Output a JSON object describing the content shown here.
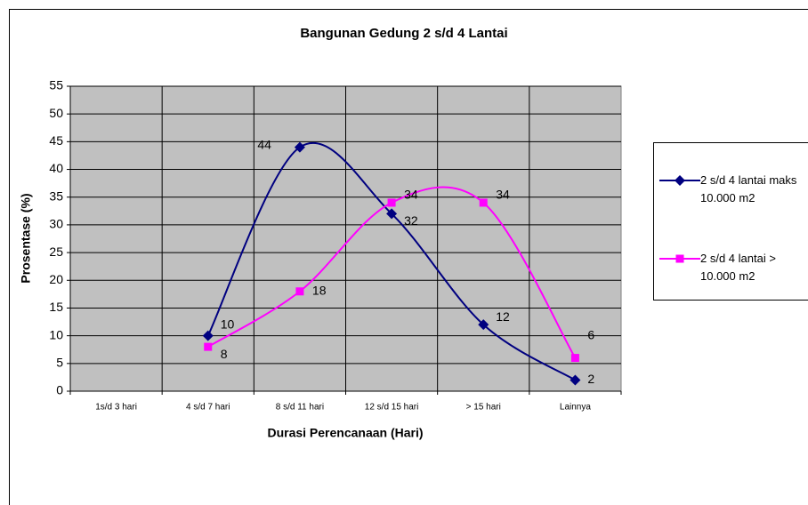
{
  "chart_data": {
    "type": "line",
    "title": "Bangunan Gedung 2 s/d 4  Lantai",
    "x_label": "Durasi Perencanaan (Hari)",
    "y_label": "Prosentase (%)",
    "categories": [
      "1s/d 3 hari",
      "4 s/d 7 hari",
      "8 s/d 11 hari",
      "12 s/d 15 hari",
      "> 15 hari",
      "Lainnya"
    ],
    "series": [
      {
        "name": "2 s/d 4 lantai maks 10.000 m2",
        "color": "#000080",
        "marker": "diamond",
        "values": [
          null,
          10,
          44,
          32,
          12,
          2
        ]
      },
      {
        "name": "2 s/d 4 lantai > 10.000 m2",
        "color": "#ff00ff",
        "marker": "square",
        "values": [
          null,
          8,
          18,
          34,
          34,
          6
        ]
      }
    ],
    "ylim": [
      0,
      55
    ],
    "yticks": [
      0,
      5,
      10,
      15,
      20,
      25,
      30,
      35,
      40,
      45,
      50,
      55
    ],
    "grid": true,
    "smooth": true,
    "plot_background": "#c0c0c0",
    "legend": "right"
  }
}
